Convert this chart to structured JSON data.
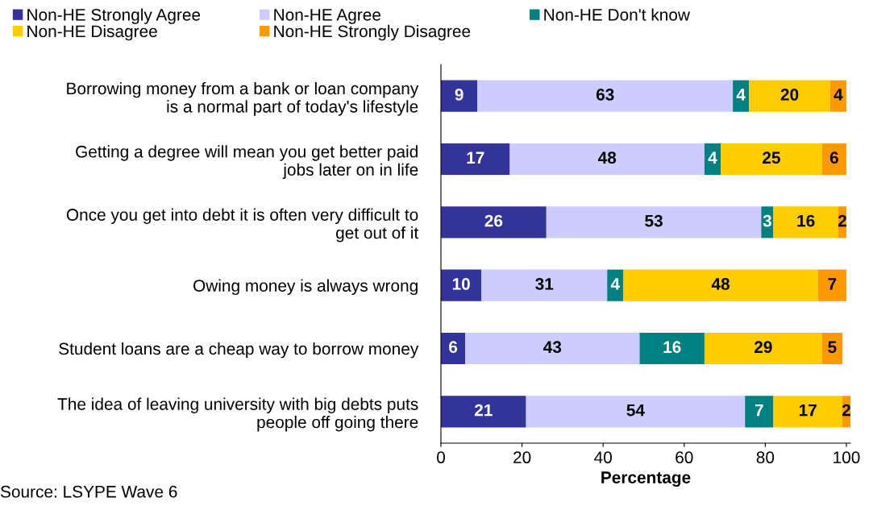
{
  "chart_data": {
    "type": "bar",
    "orientation": "horizontal",
    "stacked": true,
    "categories": [
      "Borrowing money from a bank or loan company\nis a normal part of today's lifestyle",
      "Getting a degree will mean you get better paid\njobs later on in life",
      "Once you get into debt it is often very difficult to\nget out of it",
      "Owing money is always wrong",
      "Student loans are a cheap way to borrow money",
      "The idea of leaving university with big debts puts\npeople off going there"
    ],
    "series": [
      {
        "name": "Non-HE Strongly Agree",
        "color": "#333399",
        "values": [
          9,
          17,
          26,
          10,
          6,
          21
        ]
      },
      {
        "name": "Non-HE Agree",
        "color": "#ccccff",
        "values": [
          63,
          48,
          53,
          31,
          43,
          54
        ]
      },
      {
        "name": "Non-HE Don't know",
        "color": "#008080",
        "values": [
          4,
          4,
          3,
          4,
          16,
          7
        ]
      },
      {
        "name": "Non-HE Disagree",
        "color": "#ffcc00",
        "values": [
          20,
          25,
          16,
          48,
          29,
          17
        ]
      },
      {
        "name": "Non-HE Strongly Disagree",
        "color": "#ff9900",
        "values": [
          4,
          6,
          2,
          7,
          5,
          2
        ]
      }
    ],
    "xlim": [
      0,
      101
    ],
    "xticks": [
      0,
      20,
      40,
      60,
      80,
      100
    ],
    "xlabel": "Percentage",
    "annotations": [
      "Source: LSYPE Wave 6"
    ],
    "data_labels": true,
    "legend": "top",
    "grid": false
  }
}
